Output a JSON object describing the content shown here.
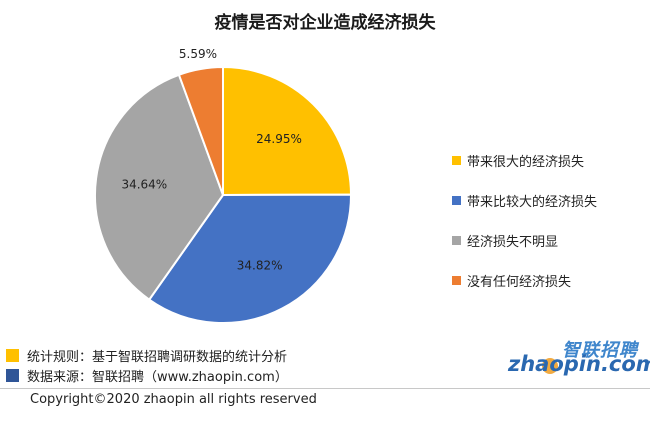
{
  "colors": {
    "yellow": "#FFC000",
    "blue": "#4472C4",
    "gray": "#A5A5A5",
    "orange": "#ED7D31"
  },
  "chart_data": {
    "type": "pie",
    "title": "疫情是否对企业造成经济损失",
    "slices": [
      {
        "label": "带来很大的经济损失",
        "value": 24.95,
        "display": "24.95%",
        "color": "#FFC000"
      },
      {
        "label": "带来比较大的经济损失",
        "value": 34.82,
        "display": "34.82%",
        "color": "#4472C4"
      },
      {
        "label": "经济损失不明显",
        "value": 34.64,
        "display": "34.64%",
        "color": "#A5A5A5"
      },
      {
        "label": "没有任何经济损失",
        "value": 5.59,
        "display": "5.59%",
        "color": "#ED7D31"
      }
    ],
    "legend_position": "right"
  },
  "footer": {
    "notes": [
      {
        "text": "统计规则：基于智联招聘调研数据的统计分析",
        "color": "#FFC000"
      },
      {
        "text": "数据来源：智联招聘（www.zhaopin.com）",
        "color": "#2F5597"
      }
    ],
    "copyright": "Copyright©2020 zhaopin all rights reserved"
  },
  "logo": {
    "cn": "智联招聘",
    "en": "zhaopin.com"
  }
}
